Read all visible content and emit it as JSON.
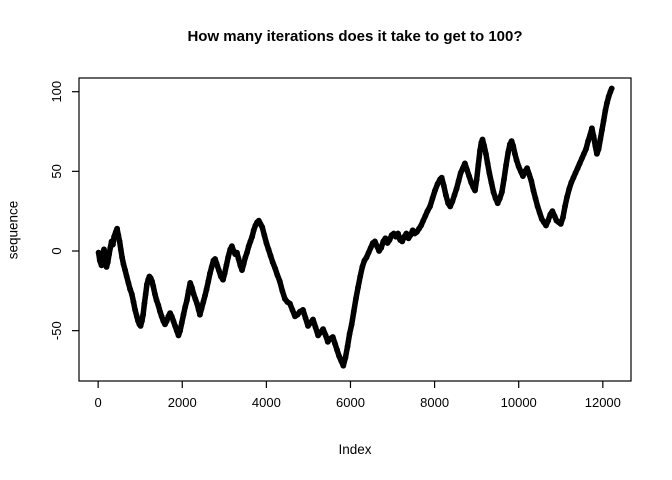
{
  "chart_data": {
    "type": "scatter",
    "title": "How many iterations does it take to get to 100?",
    "xlabel": "Index",
    "ylabel": "sequence",
    "x_ticks": [
      0,
      2000,
      4000,
      6000,
      8000,
      10000,
      12000
    ],
    "y_ticks": [
      -50,
      0,
      50,
      100
    ],
    "xlim": [
      -455,
      12670
    ],
    "ylim": [
      -81.6,
      108.6
    ],
    "grid": false,
    "legend": null,
    "marker": "open-circle",
    "color": "#000000",
    "points": [
      [
        10,
        -1
      ],
      [
        40,
        -6
      ],
      [
        80,
        -9
      ],
      [
        110,
        -3
      ],
      [
        140,
        1
      ],
      [
        170,
        -5
      ],
      [
        200,
        -10
      ],
      [
        230,
        -7
      ],
      [
        260,
        -2
      ],
      [
        290,
        2
      ],
      [
        320,
        6
      ],
      [
        350,
        4
      ],
      [
        380,
        9
      ],
      [
        420,
        12
      ],
      [
        450,
        14
      ],
      [
        480,
        10
      ],
      [
        510,
        6
      ],
      [
        540,
        1
      ],
      [
        570,
        -4
      ],
      [
        600,
        -8
      ],
      [
        640,
        -12
      ],
      [
        680,
        -16
      ],
      [
        720,
        -20
      ],
      [
        760,
        -24
      ],
      [
        800,
        -27
      ],
      [
        840,
        -32
      ],
      [
        880,
        -37
      ],
      [
        920,
        -41
      ],
      [
        950,
        -44
      ],
      [
        980,
        -46
      ],
      [
        1010,
        -47
      ],
      [
        1040,
        -44
      ],
      [
        1070,
        -40
      ],
      [
        1100,
        -33
      ],
      [
        1130,
        -27
      ],
      [
        1160,
        -21
      ],
      [
        1190,
        -18
      ],
      [
        1220,
        -16
      ],
      [
        1250,
        -17
      ],
      [
        1280,
        -19
      ],
      [
        1310,
        -22
      ],
      [
        1350,
        -27
      ],
      [
        1390,
        -31
      ],
      [
        1430,
        -34
      ],
      [
        1470,
        -38
      ],
      [
        1510,
        -41
      ],
      [
        1550,
        -44
      ],
      [
        1590,
        -46
      ],
      [
        1630,
        -44
      ],
      [
        1670,
        -41
      ],
      [
        1710,
        -39
      ],
      [
        1750,
        -41
      ],
      [
        1790,
        -44
      ],
      [
        1830,
        -47
      ],
      [
        1870,
        -50
      ],
      [
        1910,
        -53
      ],
      [
        1950,
        -50
      ],
      [
        1990,
        -45
      ],
      [
        2030,
        -40
      ],
      [
        2070,
        -35
      ],
      [
        2110,
        -31
      ],
      [
        2150,
        -25
      ],
      [
        2190,
        -20
      ],
      [
        2230,
        -23
      ],
      [
        2270,
        -27
      ],
      [
        2310,
        -30
      ],
      [
        2350,
        -33
      ],
      [
        2390,
        -37
      ],
      [
        2420,
        -40
      ],
      [
        2460,
        -36
      ],
      [
        2500,
        -32
      ],
      [
        2540,
        -28
      ],
      [
        2580,
        -24
      ],
      [
        2620,
        -19
      ],
      [
        2660,
        -14
      ],
      [
        2700,
        -10
      ],
      [
        2740,
        -6
      ],
      [
        2780,
        -5
      ],
      [
        2820,
        -8
      ],
      [
        2870,
        -12
      ],
      [
        2920,
        -16
      ],
      [
        2970,
        -18
      ],
      [
        3010,
        -14
      ],
      [
        3050,
        -9
      ],
      [
        3090,
        -4
      ],
      [
        3140,
        1
      ],
      [
        3180,
        3
      ],
      [
        3220,
        0
      ],
      [
        3260,
        -2
      ],
      [
        3300,
        -1
      ],
      [
        3340,
        -5
      ],
      [
        3380,
        -9
      ],
      [
        3420,
        -12
      ],
      [
        3460,
        -8
      ],
      [
        3500,
        -4
      ],
      [
        3540,
        -1
      ],
      [
        3580,
        3
      ],
      [
        3620,
        6
      ],
      [
        3660,
        9
      ],
      [
        3700,
        13
      ],
      [
        3740,
        16
      ],
      [
        3780,
        18
      ],
      [
        3820,
        19
      ],
      [
        3860,
        17
      ],
      [
        3900,
        15
      ],
      [
        3950,
        10
      ],
      [
        4000,
        5
      ],
      [
        4050,
        1
      ],
      [
        4100,
        -3
      ],
      [
        4150,
        -7
      ],
      [
        4210,
        -11
      ],
      [
        4260,
        -15
      ],
      [
        4320,
        -19
      ],
      [
        4380,
        -25
      ],
      [
        4440,
        -30
      ],
      [
        4500,
        -32
      ],
      [
        4560,
        -33
      ],
      [
        4620,
        -37
      ],
      [
        4680,
        -41
      ],
      [
        4740,
        -40
      ],
      [
        4800,
        -38
      ],
      [
        4870,
        -37
      ],
      [
        4930,
        -42
      ],
      [
        4990,
        -47
      ],
      [
        5050,
        -45
      ],
      [
        5110,
        -43
      ],
      [
        5170,
        -48
      ],
      [
        5230,
        -53
      ],
      [
        5290,
        -51
      ],
      [
        5350,
        -49
      ],
      [
        5410,
        -53
      ],
      [
        5460,
        -57
      ],
      [
        5520,
        -55
      ],
      [
        5580,
        -54
      ],
      [
        5630,
        -58
      ],
      [
        5680,
        -62
      ],
      [
        5730,
        -66
      ],
      [
        5780,
        -69
      ],
      [
        5830,
        -72
      ],
      [
        5880,
        -67
      ],
      [
        5930,
        -60
      ],
      [
        5980,
        -52
      ],
      [
        6030,
        -46
      ],
      [
        6080,
        -38
      ],
      [
        6130,
        -30
      ],
      [
        6180,
        -23
      ],
      [
        6230,
        -16
      ],
      [
        6280,
        -10
      ],
      [
        6330,
        -6
      ],
      [
        6380,
        -4
      ],
      [
        6430,
        -1
      ],
      [
        6480,
        2
      ],
      [
        6530,
        5
      ],
      [
        6580,
        6
      ],
      [
        6630,
        3
      ],
      [
        6680,
        0
      ],
      [
        6730,
        2
      ],
      [
        6780,
        6
      ],
      [
        6830,
        8
      ],
      [
        6880,
        5
      ],
      [
        6930,
        7
      ],
      [
        6980,
        10
      ],
      [
        7030,
        11
      ],
      [
        7080,
        9
      ],
      [
        7130,
        11
      ],
      [
        7180,
        7
      ],
      [
        7230,
        6
      ],
      [
        7280,
        9
      ],
      [
        7330,
        11
      ],
      [
        7380,
        8
      ],
      [
        7430,
        10
      ],
      [
        7480,
        13
      ],
      [
        7530,
        11
      ],
      [
        7580,
        12
      ],
      [
        7630,
        14
      ],
      [
        7680,
        16
      ],
      [
        7730,
        19
      ],
      [
        7780,
        22
      ],
      [
        7830,
        25
      ],
      [
        7890,
        28
      ],
      [
        7950,
        33
      ],
      [
        8010,
        38
      ],
      [
        8070,
        42
      ],
      [
        8130,
        45
      ],
      [
        8170,
        46
      ],
      [
        8220,
        41
      ],
      [
        8270,
        35
      ],
      [
        8320,
        30
      ],
      [
        8370,
        28
      ],
      [
        8420,
        31
      ],
      [
        8470,
        35
      ],
      [
        8520,
        39
      ],
      [
        8570,
        44
      ],
      [
        8620,
        49
      ],
      [
        8670,
        52
      ],
      [
        8720,
        55
      ],
      [
        8770,
        51
      ],
      [
        8820,
        47
      ],
      [
        8870,
        43
      ],
      [
        8920,
        40
      ],
      [
        8960,
        38
      ],
      [
        9000,
        45
      ],
      [
        9040,
        54
      ],
      [
        9080,
        63
      ],
      [
        9110,
        68
      ],
      [
        9140,
        70
      ],
      [
        9180,
        66
      ],
      [
        9220,
        61
      ],
      [
        9260,
        55
      ],
      [
        9300,
        49
      ],
      [
        9350,
        43
      ],
      [
        9400,
        37
      ],
      [
        9450,
        33
      ],
      [
        9500,
        30
      ],
      [
        9550,
        33
      ],
      [
        9600,
        37
      ],
      [
        9650,
        45
      ],
      [
        9700,
        54
      ],
      [
        9750,
        62
      ],
      [
        9790,
        67
      ],
      [
        9830,
        69
      ],
      [
        9870,
        66
      ],
      [
        9910,
        61
      ],
      [
        9950,
        57
      ],
      [
        10000,
        53
      ],
      [
        10050,
        50
      ],
      [
        10100,
        47
      ],
      [
        10150,
        50
      ],
      [
        10200,
        52
      ],
      [
        10250,
        48
      ],
      [
        10300,
        44
      ],
      [
        10350,
        38
      ],
      [
        10400,
        33
      ],
      [
        10450,
        28
      ],
      [
        10500,
        24
      ],
      [
        10550,
        20
      ],
      [
        10600,
        18
      ],
      [
        10650,
        16
      ],
      [
        10700,
        19
      ],
      [
        10750,
        23
      ],
      [
        10800,
        25
      ],
      [
        10850,
        22
      ],
      [
        10900,
        19
      ],
      [
        10950,
        18
      ],
      [
        11000,
        17
      ],
      [
        11050,
        21
      ],
      [
        11100,
        28
      ],
      [
        11150,
        34
      ],
      [
        11200,
        39
      ],
      [
        11250,
        43
      ],
      [
        11300,
        46
      ],
      [
        11350,
        49
      ],
      [
        11400,
        52
      ],
      [
        11450,
        55
      ],
      [
        11500,
        58
      ],
      [
        11550,
        61
      ],
      [
        11600,
        64
      ],
      [
        11650,
        69
      ],
      [
        11700,
        73
      ],
      [
        11740,
        77
      ],
      [
        11780,
        72
      ],
      [
        11820,
        66
      ],
      [
        11860,
        61
      ],
      [
        11900,
        64
      ],
      [
        11940,
        70
      ],
      [
        11980,
        76
      ],
      [
        12020,
        82
      ],
      [
        12060,
        88
      ],
      [
        12100,
        93
      ],
      [
        12140,
        97
      ],
      [
        12180,
        100
      ],
      [
        12210,
        102
      ]
    ]
  }
}
